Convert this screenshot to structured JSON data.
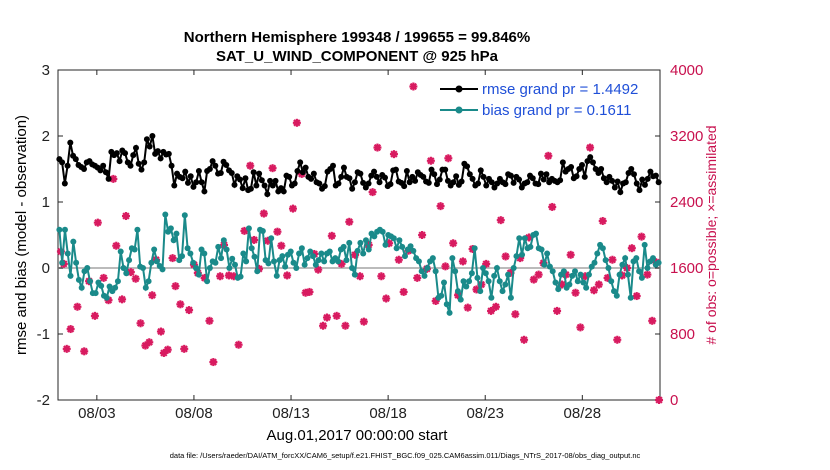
{
  "chart_data": {
    "type": "line",
    "title_line1": "Northern Hemisphere 199348 / 199655 = 99.846%",
    "title_line2": "SAT_U_WIND_COMPONENT @ 925 hPa",
    "ylabel_left": "rmse and bias (model - observation)",
    "ylabel_right": "# of obs: o=possible; ×=assimilated",
    "xlabel": "Aug.01,2017 00:00:00 start",
    "footnote": "data file: /Users/raeder/DAI/ATM_forcXX/CAM6_setup/f.e21.FHIST_BGC.f09_025.CAM6assim.011/Diags_NTrS_2017-08/obs_diag_output.nc",
    "ylim_left": [
      -2,
      3
    ],
    "yticks_left": [
      "-2",
      "-1",
      "0",
      "1",
      "2",
      "3"
    ],
    "ylim_right": [
      0,
      4000
    ],
    "yticks_right": [
      "0",
      "800",
      "1600",
      "2400",
      "3200",
      "4000"
    ],
    "xlim": [
      1.0,
      32.0
    ],
    "xticks": [
      3,
      8,
      13,
      18,
      23,
      28
    ],
    "xtick_labels": [
      "08/03",
      "08/08",
      "08/13",
      "08/18",
      "08/23",
      "08/28"
    ],
    "legend": {
      "rmse_label": "rmse grand pr = 1.4492",
      "bias_label": "bias grand pr = 0.1611",
      "placement": "top-right"
    },
    "colors": {
      "rmse": "#000000",
      "bias": "#1a8a8a",
      "obs": "#d81b60",
      "zero_line": "#bbbbbb",
      "right_axis": "#c8104e"
    },
    "series": [
      {
        "name": "rmse",
        "axis": "left",
        "values": [
          1.65,
          1.6,
          1.28,
          1.55,
          1.9,
          1.7,
          1.65,
          1.56,
          1.53,
          1.5,
          1.6,
          1.62,
          1.57,
          1.55,
          1.52,
          1.48,
          1.55,
          1.45,
          1.35,
          1.76,
          1.71,
          1.74,
          1.62,
          1.78,
          1.74,
          1.6,
          1.55,
          1.71,
          1.82,
          1.58,
          1.49,
          1.6,
          1.95,
          1.84,
          2.0,
          1.73,
          1.77,
          1.66,
          1.76,
          1.72,
          1.73,
          1.55,
          1.25,
          1.43,
          1.38,
          1.36,
          1.46,
          1.29,
          1.39,
          1.23,
          1.3,
          1.47,
          1.3,
          1.16,
          1.47,
          1.5,
          1.62,
          1.55,
          1.43,
          1.44,
          1.61,
          1.56,
          1.48,
          1.44,
          1.26,
          1.39,
          1.34,
          1.21,
          1.36,
          1.18,
          1.2,
          1.45,
          1.25,
          1.43,
          1.33,
          1.25,
          1.12,
          1.32,
          1.25,
          1.32,
          1.16,
          1.21,
          1.16,
          1.4,
          1.38,
          1.25,
          1.28,
          1.47,
          1.6,
          1.45,
          1.52,
          1.38,
          1.35,
          1.43,
          1.3,
          1.28,
          1.2,
          1.24,
          1.46,
          1.5,
          1.55,
          1.25,
          1.28,
          1.38,
          1.52,
          1.38,
          1.36,
          1.2,
          1.3,
          1.45,
          1.43,
          1.29,
          1.22,
          1.28,
          1.4,
          1.46,
          1.38,
          1.3,
          1.41,
          1.37,
          1.24,
          1.27,
          1.48,
          1.49,
          1.31,
          1.29,
          1.24,
          1.47,
          1.3,
          1.38,
          1.32,
          1.45,
          1.41,
          1.38,
          1.31,
          1.29,
          1.49,
          1.42,
          1.27,
          1.34,
          1.49,
          1.49,
          1.32,
          1.25,
          1.3,
          1.39,
          1.26,
          1.31,
          1.58,
          1.54,
          1.42,
          1.35,
          1.25,
          1.28,
          1.48,
          1.38,
          1.25,
          1.35,
          1.3,
          1.22,
          1.28,
          1.35,
          1.3,
          1.27,
          1.42,
          1.4,
          1.29,
          1.38,
          1.34,
          1.22,
          1.28,
          1.3,
          1.4,
          1.36,
          1.28,
          1.27,
          1.43,
          1.34,
          1.42,
          1.3,
          1.35,
          1.32,
          1.3,
          1.33,
          1.6,
          1.46,
          1.5,
          1.53,
          1.36,
          1.39,
          1.5,
          1.56,
          1.38,
          1.62,
          1.68,
          1.6,
          1.5,
          1.44,
          1.5,
          1.36,
          1.3,
          1.38,
          1.32,
          1.22,
          1.31,
          1.15,
          1.28,
          1.3,
          1.44,
          1.5,
          1.42,
          1.28,
          1.18,
          1.34,
          1.26,
          1.35,
          1.46,
          1.39,
          1.4,
          1.3
        ]
      },
      {
        "name": "bias",
        "axis": "left",
        "values": [
          0.58,
          0.08,
          0.58,
          0.22,
          -0.12,
          0.4,
          0.08,
          -0.18,
          -0.3,
          -0.05,
          0.0,
          -0.2,
          -0.38,
          -0.38,
          -0.22,
          -0.27,
          -0.42,
          -0.45,
          -0.28,
          -0.35,
          -0.3,
          -0.2,
          0.25,
          0.0,
          -0.08,
          0.12,
          0.3,
          0.28,
          0.58,
          0.02,
          0.0,
          -0.3,
          -0.2,
          0.08,
          0.28,
          0.1,
          0.03,
          -0.02,
          0.81,
          0.55,
          0.6,
          0.42,
          0.52,
          0.12,
          0.18,
          0.8,
          0.3,
          0.22,
          0.08,
          0.0,
          -0.1,
          0.28,
          0.22,
          -0.2,
          0.0,
          0.1,
          0.08,
          0.32,
          0.15,
          0.42,
          0.28,
          0.0,
          0.14,
          0.05,
          -0.15,
          -0.13,
          0.22,
          0.1,
          0.6,
          0.3,
          0.17,
          -0.05,
          0.58,
          0.56,
          0.12,
          0.07,
          0.45,
          0.1,
          -0.12,
          0.12,
          0.18,
          0.02,
          0.2,
          0.25,
          0.08,
          0.0,
          0.22,
          0.3,
          0.05,
          0.15,
          0.25,
          0.18,
          0.05,
          0.12,
          0.22,
          0.1,
          0.22,
          0.25,
          0.1,
          0.15,
          0.1,
          0.28,
          0.32,
          0.12,
          0.38,
          0.0,
          -0.1,
          0.26,
          0.38,
          0.22,
          0.42,
          0.28,
          0.52,
          0.48,
          0.55,
          0.58,
          0.55,
          0.35,
          0.5,
          0.48,
          0.45,
          0.3,
          0.42,
          0.32,
          0.18,
          0.28,
          0.33,
          0.26,
          0.15,
          0.1,
          -0.05,
          -0.12,
          0.0,
          0.1,
          0.15,
          -0.05,
          -0.45,
          -0.42,
          -0.22,
          -0.55,
          -0.68,
          0.15,
          -0.05,
          -0.35,
          -0.48,
          -0.2,
          -0.28,
          -0.2,
          -0.08,
          0.3,
          -0.15,
          -0.35,
          0.0,
          -0.08,
          -0.2,
          -0.45,
          -0.12,
          0.0,
          -0.2,
          -0.35,
          -0.25,
          -0.1,
          -0.45,
          0.0,
          0.18,
          0.45,
          0.2,
          0.45,
          0.3,
          0.32,
          0.5,
          0.52,
          0.3,
          0.28,
          0.05,
          0.22,
          0.02,
          -0.05,
          -0.22,
          -0.32,
          -0.1,
          -0.05,
          -0.3,
          -0.25,
          -0.12,
          -0.05,
          -0.2,
          -0.1,
          -0.22,
          -0.3,
          -0.1,
          0.02,
          0.08,
          0.22,
          0.35,
          0.3,
          0.12,
          0.0,
          -0.2,
          -0.35,
          -0.42,
          -0.1,
          0.05,
          0.15,
          -0.1,
          -0.45,
          0.1,
          0.15,
          -0.05,
          -0.15,
          0.35,
          0.0,
          0.1,
          0.15,
          0.05,
          0.08
        ]
      }
    ],
    "obs_points_assimilated": [
      {
        "x": 1.15,
        "y": 1800
      },
      {
        "x": 1.3,
        "y": 1650
      },
      {
        "x": 1.45,
        "y": 620
      },
      {
        "x": 1.65,
        "y": 860
      },
      {
        "x": 2.0,
        "y": 1130
      },
      {
        "x": 2.35,
        "y": 590
      },
      {
        "x": 2.6,
        "y": 1440
      },
      {
        "x": 2.9,
        "y": 1020
      },
      {
        "x": 3.05,
        "y": 2150
      },
      {
        "x": 3.35,
        "y": 1480
      },
      {
        "x": 3.6,
        "y": 1210
      },
      {
        "x": 3.85,
        "y": 2680
      },
      {
        "x": 4.0,
        "y": 1870
      },
      {
        "x": 4.3,
        "y": 1220
      },
      {
        "x": 4.5,
        "y": 2230
      },
      {
        "x": 4.75,
        "y": 1550
      },
      {
        "x": 5.0,
        "y": 1470
      },
      {
        "x": 5.25,
        "y": 930
      },
      {
        "x": 5.5,
        "y": 660
      },
      {
        "x": 5.7,
        "y": 700
      },
      {
        "x": 5.85,
        "y": 1270
      },
      {
        "x": 6.05,
        "y": 1700
      },
      {
        "x": 6.3,
        "y": 830
      },
      {
        "x": 6.45,
        "y": 570
      },
      {
        "x": 6.65,
        "y": 610
      },
      {
        "x": 6.9,
        "y": 1720
      },
      {
        "x": 7.05,
        "y": 1380
      },
      {
        "x": 7.3,
        "y": 1160
      },
      {
        "x": 7.5,
        "y": 620
      },
      {
        "x": 7.75,
        "y": 1090
      },
      {
        "x": 8.0,
        "y": 1640
      },
      {
        "x": 8.2,
        "y": 1540
      },
      {
        "x": 8.55,
        "y": 1480
      },
      {
        "x": 8.8,
        "y": 960
      },
      {
        "x": 9.0,
        "y": 460
      },
      {
        "x": 9.35,
        "y": 1500
      },
      {
        "x": 9.55,
        "y": 1880
      },
      {
        "x": 9.8,
        "y": 1510
      },
      {
        "x": 10.05,
        "y": 1500
      },
      {
        "x": 10.3,
        "y": 670
      },
      {
        "x": 10.6,
        "y": 2050
      },
      {
        "x": 10.9,
        "y": 2840
      },
      {
        "x": 11.1,
        "y": 1940
      },
      {
        "x": 11.35,
        "y": 1590
      },
      {
        "x": 11.6,
        "y": 2260
      },
      {
        "x": 11.8,
        "y": 1930
      },
      {
        "x": 12.05,
        "y": 2810
      },
      {
        "x": 12.3,
        "y": 2040
      },
      {
        "x": 12.5,
        "y": 1870
      },
      {
        "x": 12.8,
        "y": 1510
      },
      {
        "x": 13.1,
        "y": 2320
      },
      {
        "x": 13.3,
        "y": 3360
      },
      {
        "x": 13.55,
        "y": 2740
      },
      {
        "x": 13.75,
        "y": 1300
      },
      {
        "x": 13.95,
        "y": 1310
      },
      {
        "x": 14.2,
        "y": 1770
      },
      {
        "x": 14.4,
        "y": 1580
      },
      {
        "x": 14.65,
        "y": 900
      },
      {
        "x": 14.85,
        "y": 1000
      },
      {
        "x": 15.1,
        "y": 1990
      },
      {
        "x": 15.35,
        "y": 1020
      },
      {
        "x": 15.6,
        "y": 1650
      },
      {
        "x": 15.8,
        "y": 900
      },
      {
        "x": 16.0,
        "y": 2160
      },
      {
        "x": 16.3,
        "y": 1760
      },
      {
        "x": 16.55,
        "y": 1500
      },
      {
        "x": 16.75,
        "y": 950
      },
      {
        "x": 17.0,
        "y": 1880
      },
      {
        "x": 17.2,
        "y": 2520
      },
      {
        "x": 17.45,
        "y": 3060
      },
      {
        "x": 17.65,
        "y": 1500
      },
      {
        "x": 17.9,
        "y": 1230
      },
      {
        "x": 18.05,
        "y": 1900
      },
      {
        "x": 18.3,
        "y": 2980
      },
      {
        "x": 18.55,
        "y": 1700
      },
      {
        "x": 18.8,
        "y": 1310
      },
      {
        "x": 19.05,
        "y": 1810
      },
      {
        "x": 19.3,
        "y": 3800
      },
      {
        "x": 19.5,
        "y": 1480
      },
      {
        "x": 19.75,
        "y": 2000
      },
      {
        "x": 20.0,
        "y": 1590
      },
      {
        "x": 20.2,
        "y": 2900
      },
      {
        "x": 20.45,
        "y": 1200
      },
      {
        "x": 20.7,
        "y": 2350
      },
      {
        "x": 20.95,
        "y": 1620
      },
      {
        "x": 21.1,
        "y": 2930
      },
      {
        "x": 21.35,
        "y": 1900
      },
      {
        "x": 21.6,
        "y": 1270
      },
      {
        "x": 21.85,
        "y": 1680
      },
      {
        "x": 22.1,
        "y": 1120
      },
      {
        "x": 22.35,
        "y": 1830
      },
      {
        "x": 22.55,
        "y": 1340
      },
      {
        "x": 22.8,
        "y": 1400
      },
      {
        "x": 23.05,
        "y": 1650
      },
      {
        "x": 23.3,
        "y": 1080
      },
      {
        "x": 23.55,
        "y": 1130
      },
      {
        "x": 23.8,
        "y": 2180
      },
      {
        "x": 24.05,
        "y": 1740
      },
      {
        "x": 24.3,
        "y": 1540
      },
      {
        "x": 24.55,
        "y": 1040
      },
      {
        "x": 24.8,
        "y": 1720
      },
      {
        "x": 25.0,
        "y": 730
      },
      {
        "x": 25.25,
        "y": 1970
      },
      {
        "x": 25.5,
        "y": 1460
      },
      {
        "x": 25.75,
        "y": 1520
      },
      {
        "x": 26.0,
        "y": 1660
      },
      {
        "x": 26.25,
        "y": 2960
      },
      {
        "x": 26.45,
        "y": 2340
      },
      {
        "x": 26.7,
        "y": 1080
      },
      {
        "x": 26.95,
        "y": 1400
      },
      {
        "x": 27.15,
        "y": 1520
      },
      {
        "x": 27.4,
        "y": 1760
      },
      {
        "x": 27.65,
        "y": 1300
      },
      {
        "x": 27.9,
        "y": 880
      },
      {
        "x": 28.15,
        "y": 1500
      },
      {
        "x": 28.4,
        "y": 3060
      },
      {
        "x": 28.6,
        "y": 1330
      },
      {
        "x": 28.85,
        "y": 1400
      },
      {
        "x": 29.05,
        "y": 2170
      },
      {
        "x": 29.3,
        "y": 1480
      },
      {
        "x": 29.55,
        "y": 1700
      },
      {
        "x": 29.8,
        "y": 730
      },
      {
        "x": 30.05,
        "y": 1510
      },
      {
        "x": 30.3,
        "y": 1600
      },
      {
        "x": 30.55,
        "y": 1840
      },
      {
        "x": 30.8,
        "y": 1260
      },
      {
        "x": 31.05,
        "y": 1980
      },
      {
        "x": 31.35,
        "y": 1520
      },
      {
        "x": 31.6,
        "y": 960
      },
      {
        "x": 31.8,
        "y": 1670
      },
      {
        "x": 31.95,
        "y": 0
      }
    ]
  }
}
